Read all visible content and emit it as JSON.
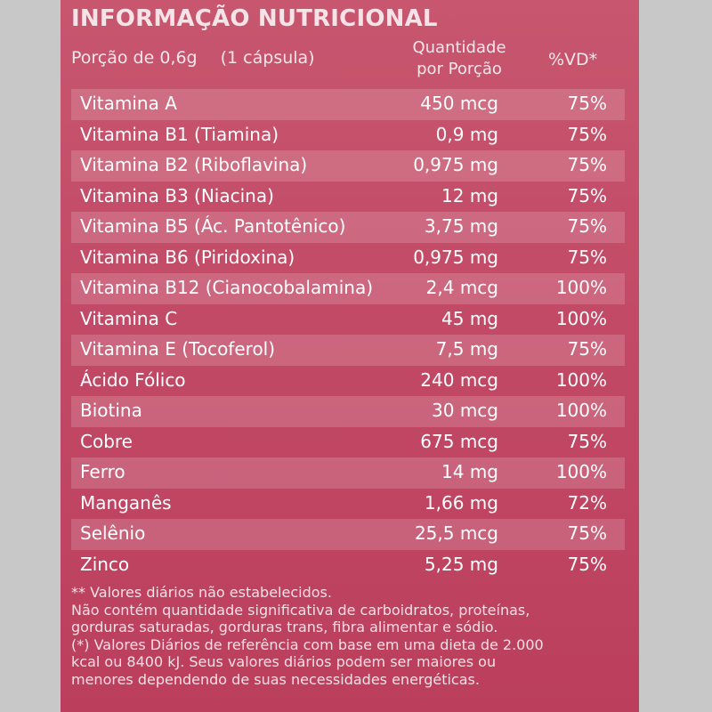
{
  "header": {
    "title": "INFORMAÇÃO NUTRICIONAL",
    "portion": "Porção de 0,6g",
    "capsule": "(1 cápsula)",
    "quantity_line1": "Quantidade",
    "quantity_line2": "por Porção",
    "vd": "%VD*"
  },
  "rows": [
    {
      "name": "Vitamina A",
      "qty": "450 mcg",
      "vd": "75%"
    },
    {
      "name": "Vitamina B1 (Tiamina)",
      "qty": "0,9 mg",
      "vd": "75%"
    },
    {
      "name": "Vitamina B2 (Riboflavina)",
      "qty": "0,975 mg",
      "vd": "75%"
    },
    {
      "name": "Vitamina B3 (Niacina)",
      "qty": "12 mg",
      "vd": "75%"
    },
    {
      "name": "Vitamina B5 (Ác. Pantotênico)",
      "qty": "3,75 mg",
      "vd": "75%"
    },
    {
      "name": "Vitamina B6 (Piridoxina)",
      "qty": "0,975 mg",
      "vd": "75%"
    },
    {
      "name": "Vitamina B12 (Cianocobalamina)",
      "qty": "2,4 mcg",
      "vd": "100%"
    },
    {
      "name": "Vitamina C",
      "qty": "45 mg",
      "vd": "100%"
    },
    {
      "name": "Vitamina E (Tocoferol)",
      "qty": "7,5 mg",
      "vd": "75%"
    },
    {
      "name": "Ácido Fólico",
      "qty": "240 mcg",
      "vd": "100%"
    },
    {
      "name": "Biotina",
      "qty": "30 mcg",
      "vd": "100%"
    },
    {
      "name": "Cobre",
      "qty": "675 mcg",
      "vd": "75%"
    },
    {
      "name": "Ferro",
      "qty": "14 mg",
      "vd": "100%"
    },
    {
      "name": "Manganês",
      "qty": "1,66 mg",
      "vd": "72%"
    },
    {
      "name": "Selênio",
      "qty": "25,5 mcg",
      "vd": "75%"
    },
    {
      "name": "Zinco",
      "qty": "5,25 mg",
      "vd": "75%"
    }
  ],
  "footer": {
    "line1": "** Valores  diários  não estabelecidos.",
    "line2": "Não contém quantidade significativa de carboidratos, proteínas,",
    "line3": "gorduras saturadas, gorduras trans, fibra alimentar e sódio.",
    "line4": "(*) Valores Diários de referência com base em uma dieta de 2.000",
    "line5": "kcal ou 8400 kJ. Seus valores diários podem ser maiores ou",
    "line6": "menores dependendo de suas necessidades energéticas."
  },
  "colors": {
    "panel": "#c24a66",
    "background": "#c9c8c8"
  }
}
